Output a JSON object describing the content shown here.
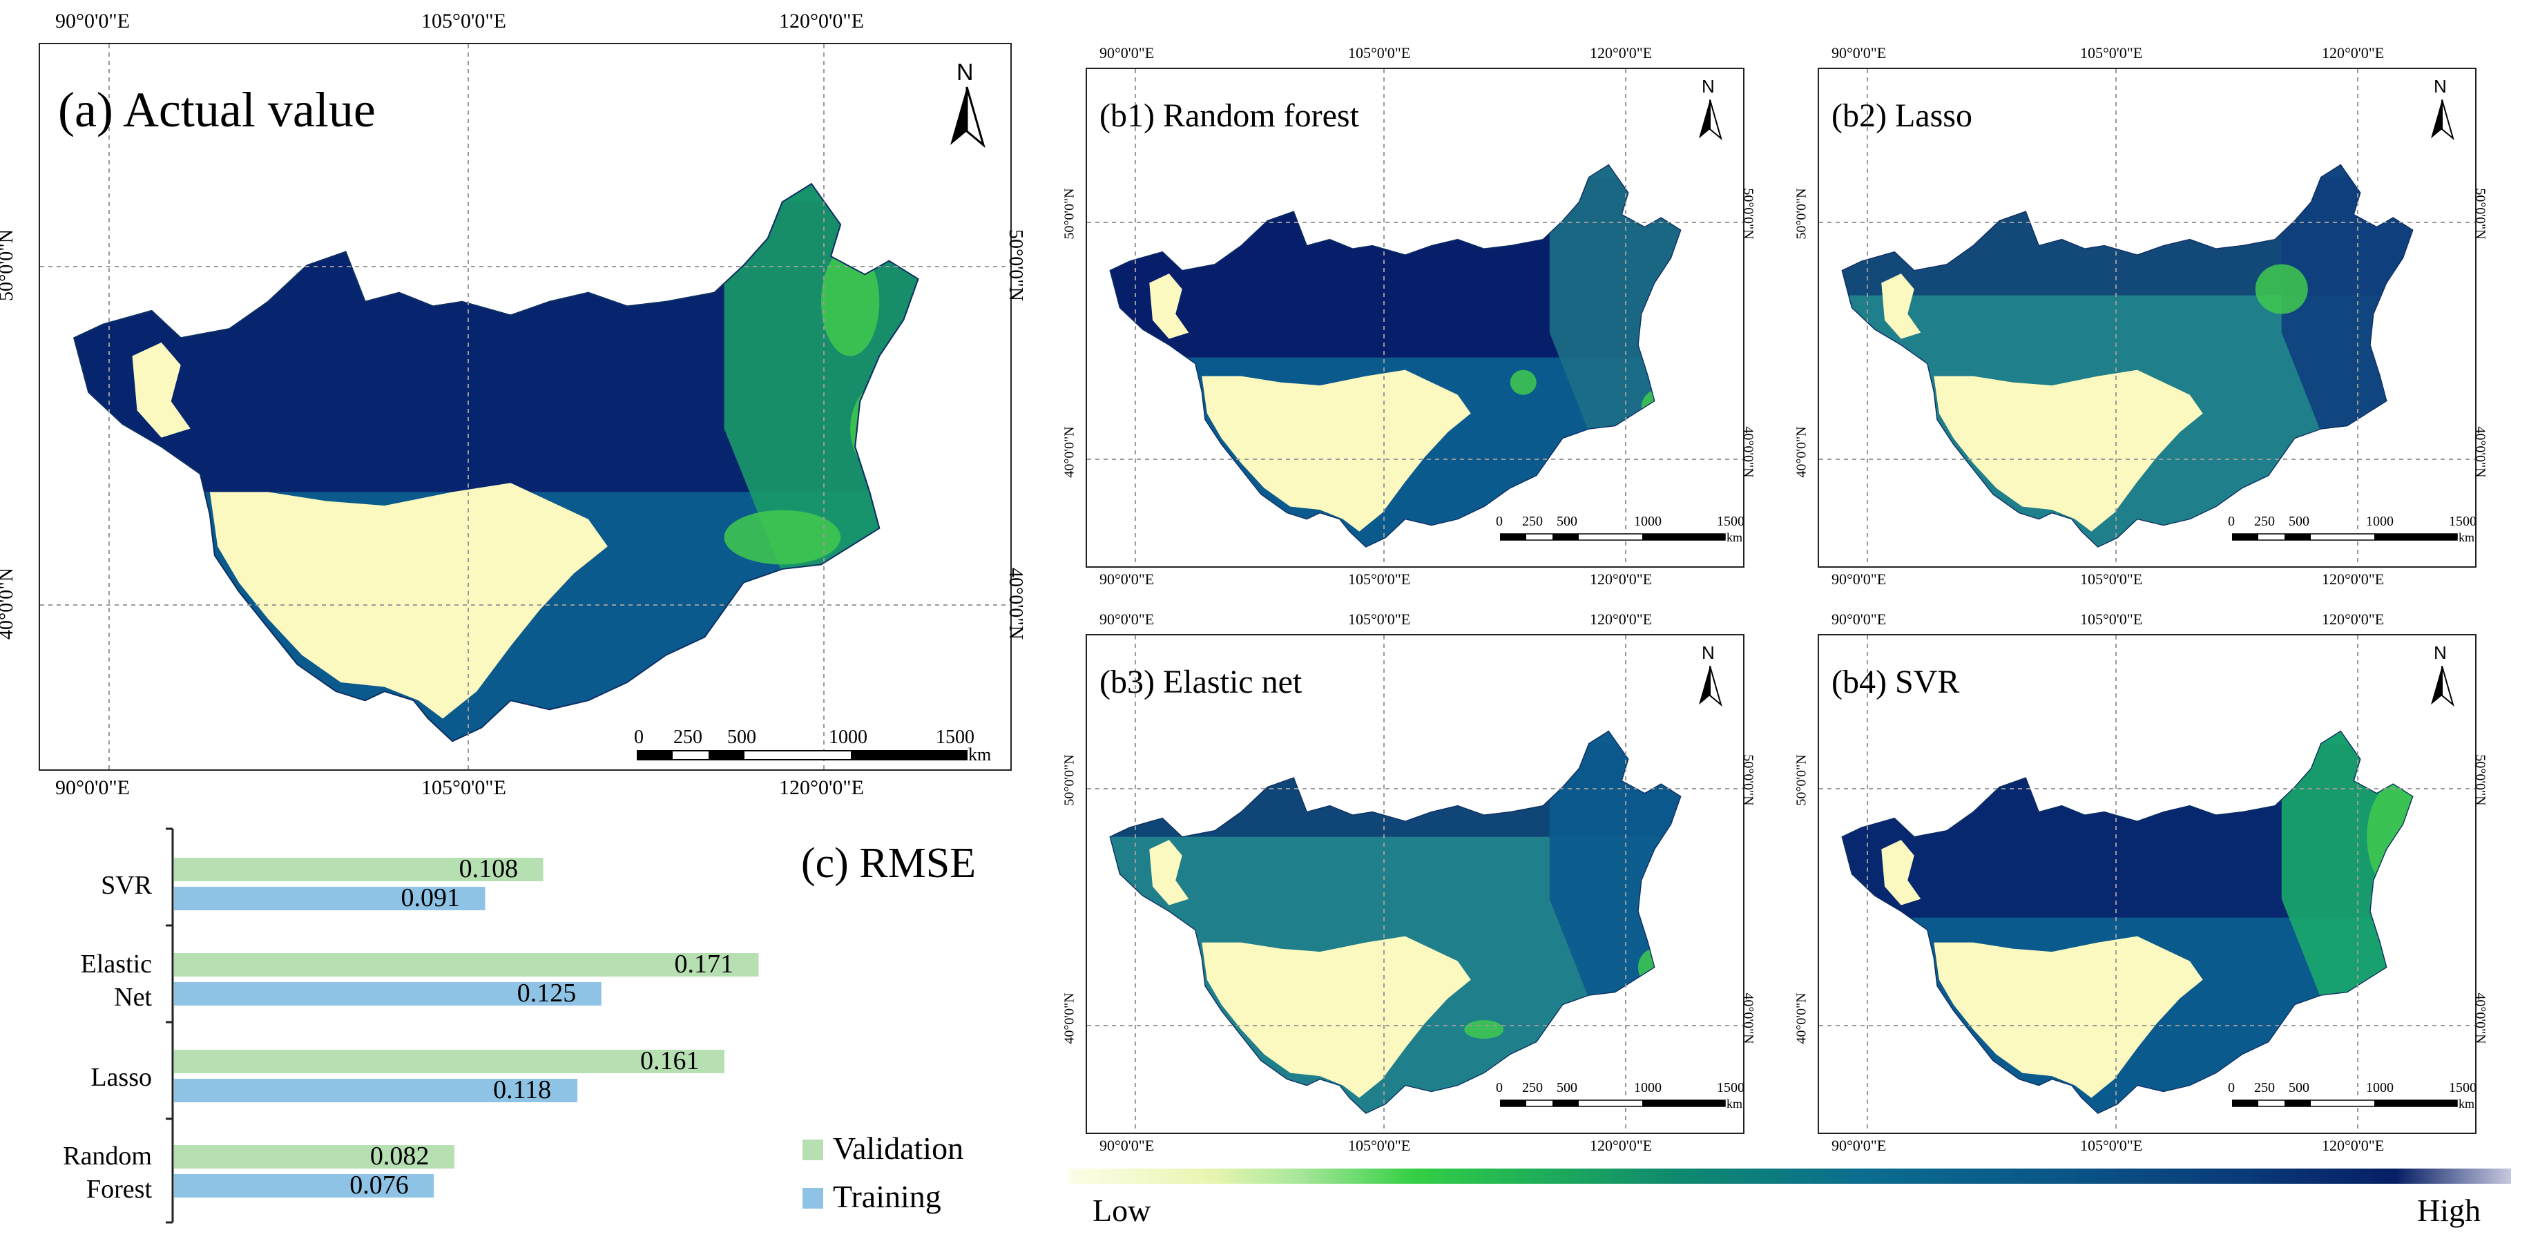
{
  "colors": {
    "low": "#fbf9c0",
    "mid_green": "#41c94e",
    "teal": "#1f7f8a",
    "blue": "#0b5a8e",
    "high": "#071e6a",
    "validation_bar": "#b6dfb2",
    "training_bar": "#8ec3e6",
    "grid": "#9a9a9a"
  },
  "map_a": {
    "title": "(a) Actual value",
    "north": "N",
    "lon_labels": [
      "90°0'0\"E",
      "105°0'0\"E",
      "120°0'0\"E"
    ],
    "lat_labels": [
      "50°0'0\"N",
      "40°0'0\"N"
    ],
    "scale_labels": [
      "0",
      "250",
      "500",
      "1000",
      "1500"
    ],
    "scale_unit": "km"
  },
  "maps_b": [
    {
      "title": "(b1) Random forest",
      "north": "N",
      "lon_labels": [
        "90°0'0\"E",
        "105°0'0\"E",
        "120°0'0\"E"
      ],
      "lat_labels": [
        "50°0'0\"N",
        "40°0'0\"N"
      ],
      "scale_labels": [
        "0",
        "250",
        "500",
        "1000",
        "1500"
      ],
      "scale_unit": "km"
    },
    {
      "title": "(b2) Lasso",
      "north": "N",
      "lon_labels": [
        "90°0'0\"E",
        "105°0'0\"E",
        "120°0'0\"E"
      ],
      "lat_labels": [
        "50°0'0\"N",
        "40°0'0\"N"
      ],
      "scale_labels": [
        "0",
        "250",
        "500",
        "1000",
        "1500"
      ],
      "scale_unit": "km"
    },
    {
      "title": "(b3) Elastic net",
      "north": "N",
      "lon_labels": [
        "90°0'0\"E",
        "105°0'0\"E",
        "120°0'0\"E"
      ],
      "lat_labels": [
        "50°0'0\"N",
        "40°0'0\"N"
      ],
      "scale_labels": [
        "0",
        "250",
        "500",
        "1000",
        "1500"
      ],
      "scale_unit": "km"
    },
    {
      "title": "(b4) SVR",
      "north": "N",
      "lon_labels": [
        "90°0'0\"E",
        "105°0'0\"E",
        "120°0'0\"E"
      ],
      "lat_labels": [
        "50°0'0\"N",
        "40°0'0\"N"
      ],
      "scale_labels": [
        "0",
        "250",
        "500",
        "1000",
        "1500"
      ],
      "scale_unit": "km"
    }
  ],
  "colorbar": {
    "low_label": "Low",
    "high_label": "High"
  },
  "chart_data": {
    "type": "bar",
    "orientation": "horizontal",
    "title": "(c) RMSE",
    "categories": [
      "SVR",
      "Elastic Net",
      "Lasso",
      "Random Forest"
    ],
    "category_lines": [
      [
        "SVR"
      ],
      [
        "Elastic",
        "Net"
      ],
      [
        "Lasso"
      ],
      [
        "Random",
        "Forest"
      ]
    ],
    "series": [
      {
        "name": "Validation",
        "values": [
          0.108,
          0.171,
          0.161,
          0.082
        ]
      },
      {
        "name": "Training",
        "values": [
          0.091,
          0.125,
          0.118,
          0.076
        ]
      }
    ],
    "xlim": [
      0,
      0.2
    ],
    "legend_position": "bottom-right",
    "data_labels": true
  }
}
